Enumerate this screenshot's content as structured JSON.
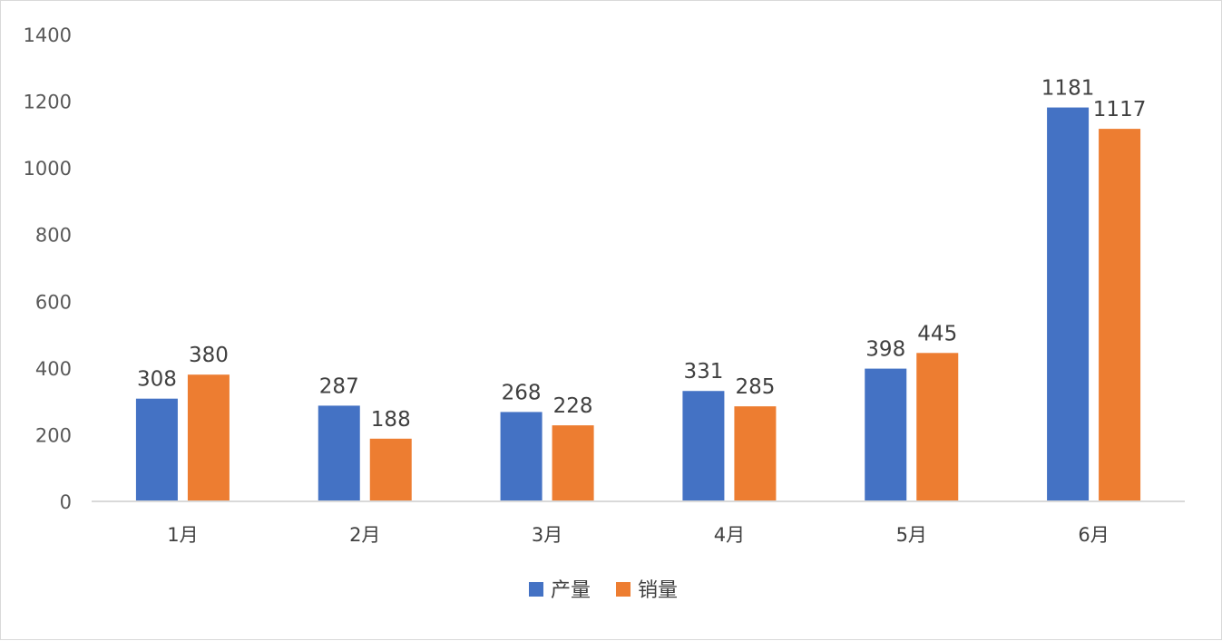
{
  "chart_data": {
    "type": "bar",
    "categories": [
      "1月",
      "2月",
      "3月",
      "4月",
      "5月",
      "6月"
    ],
    "series": [
      {
        "name": "产量",
        "values": [
          308,
          287,
          268,
          331,
          398,
          1181
        ],
        "color": "#4472C4"
      },
      {
        "name": "销量",
        "values": [
          380,
          188,
          228,
          285,
          445,
          1117
        ],
        "color": "#ED7D31"
      }
    ],
    "ylim": [
      0,
      1400
    ],
    "yticks": [
      0,
      200,
      400,
      600,
      800,
      1000,
      1200,
      1400
    ],
    "grid": false,
    "legend": "bottom-center",
    "axis_color": "#d9d9d9"
  }
}
